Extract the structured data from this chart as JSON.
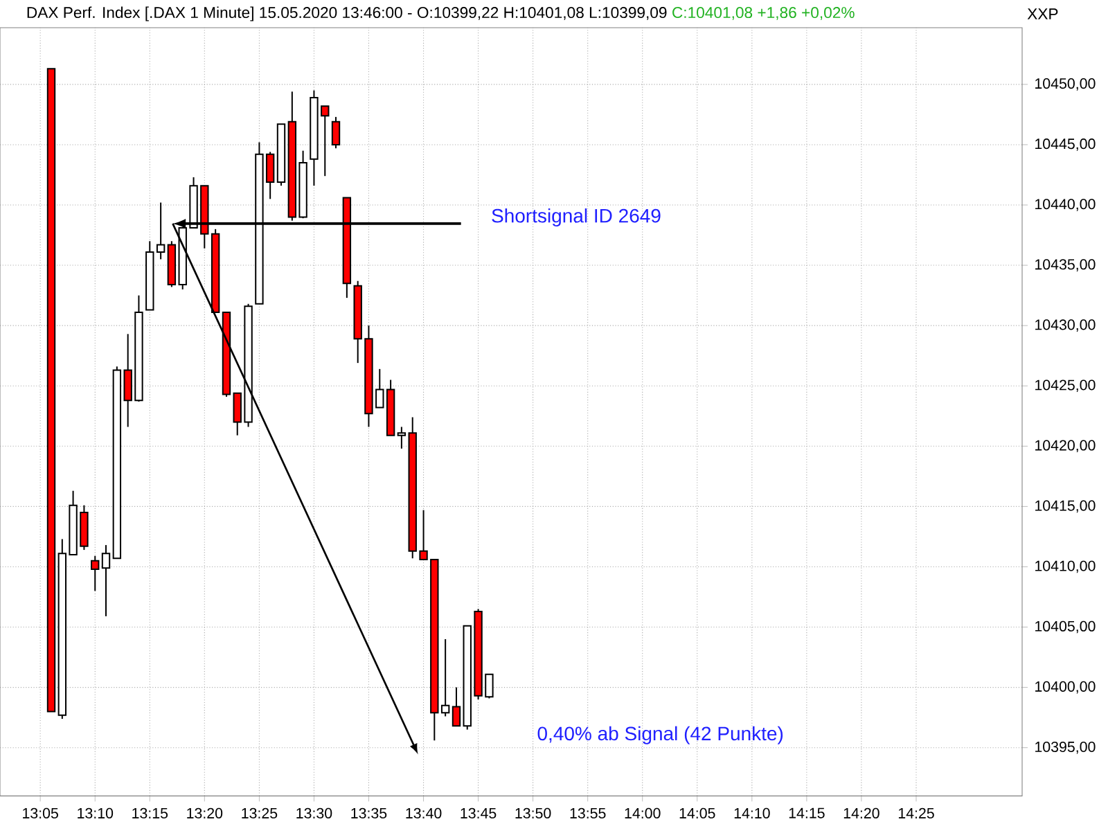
{
  "chart_data": {
    "type": "candlestick",
    "title": "DAX Perf. Index [.DAX  1 Minute] 15.05.2020 13:46:00 - O:10399,22 H:10401,08 L:10399,09",
    "subtitle": "C:10401,08 +1,86 +0,02%",
    "x": [
      13.1,
      13.1167,
      13.1333,
      13.15,
      13.1667,
      13.1833,
      13.2,
      13.2167,
      13.2333,
      13.25,
      13.2667,
      13.2833,
      13.3,
      13.3167,
      13.3333,
      13.35,
      13.3667,
      13.3833,
      13.4,
      13.4167,
      13.4333,
      13.45,
      13.4667,
      13.4833,
      13.5,
      13.5167,
      13.5333,
      13.55,
      13.5667,
      13.5833,
      13.6,
      13.6167,
      13.6333,
      13.65,
      13.6667,
      13.6833,
      13.7,
      13.7167,
      13.7333,
      13.75,
      13.7667
    ],
    "ohlc": [
      [
        10451.3,
        10451.3,
        10398.0,
        10398.0
      ],
      [
        10397.7,
        10412.3,
        10397.4,
        10411.1
      ],
      [
        10411.0,
        10416.3,
        10411.0,
        10415.1
      ],
      [
        10414.5,
        10415.1,
        10411.4,
        10411.7
      ],
      [
        10410.5,
        10410.9,
        10408.0,
        10409.8
      ],
      [
        10409.9,
        10411.8,
        10405.9,
        10411.1
      ],
      [
        10410.7,
        10426.6,
        10410.7,
        10426.3
      ],
      [
        10426.3,
        10429.3,
        10421.6,
        10423.8
      ],
      [
        10423.8,
        10432.5,
        10423.7,
        10431.1
      ],
      [
        10431.3,
        10437.0,
        10431.3,
        10436.1
      ],
      [
        10436.1,
        10440.2,
        10435.5,
        10436.7
      ],
      [
        10436.7,
        10437.0,
        10433.2,
        10433.4
      ],
      [
        10433.4,
        10438.1,
        10433.0,
        10438.1
      ],
      [
        10438.1,
        10442.3,
        10438.1,
        10441.6
      ],
      [
        10441.6,
        10441.6,
        10436.4,
        10437.6
      ],
      [
        10437.6,
        10438.0,
        10431.1,
        10431.1
      ],
      [
        10431.1,
        10431.1,
        10424.1,
        10424.3
      ],
      [
        10424.4,
        10424.4,
        10420.9,
        10422.0
      ],
      [
        10422.0,
        10431.8,
        10421.6,
        10431.6
      ],
      [
        10431.8,
        10445.2,
        10431.8,
        10444.2
      ],
      [
        10444.2,
        10444.4,
        10440.5,
        10441.9
      ],
      [
        10441.9,
        10446.7,
        10441.6,
        10446.7
      ],
      [
        10446.9,
        10449.4,
        10438.7,
        10439.0
      ],
      [
        10439.0,
        10444.5,
        10438.9,
        10443.5
      ],
      [
        10443.8,
        10449.5,
        10441.6,
        10448.9
      ],
      [
        10448.2,
        10448.2,
        10442.4,
        10447.4
      ],
      [
        10446.9,
        10447.3,
        10444.7,
        10445.0
      ],
      [
        10440.6,
        10440.6,
        10432.3,
        10433.5
      ],
      [
        10433.3,
        10433.7,
        10426.9,
        10428.9
      ],
      [
        10428.9,
        10430.0,
        10421.6,
        10422.7
      ],
      [
        10423.2,
        10426.4,
        10423.2,
        10424.7
      ],
      [
        10424.7,
        10425.5,
        10420.9,
        10420.9
      ],
      [
        10420.9,
        10421.6,
        10419.8,
        10421.1
      ],
      [
        10421.1,
        10422.4,
        10410.7,
        10411.3
      ],
      [
        10411.3,
        10414.7,
        10410.6,
        10410.6
      ],
      [
        10410.6,
        10410.6,
        10395.6,
        10397.9
      ],
      [
        10397.9,
        10404.0,
        10397.6,
        10398.5
      ],
      [
        10398.4,
        10400.0,
        10396.8,
        10396.8
      ],
      [
        10396.8,
        10405.1,
        10396.5,
        10405.1
      ],
      [
        10406.3,
        10406.5,
        10399.0,
        10399.3
      ],
      [
        10399.22,
        10401.08,
        10399.09,
        10401.08
      ]
    ],
    "colors": [
      "#ff0000",
      "#ffffff",
      "#ffffff",
      "#ff0000",
      "#ff0000",
      "#ffffff",
      "#ffffff",
      "#ff0000",
      "#ffffff",
      "#ffffff",
      "#ffffff",
      "#ff0000",
      "#ffffff",
      "#ffffff",
      "#ff0000",
      "#ff0000",
      "#ff0000",
      "#ff0000",
      "#ffffff",
      "#ffffff",
      "#ff0000",
      "#ffffff",
      "#ff0000",
      "#ffffff",
      "#ffffff",
      "#ff0000",
      "#ff0000",
      "#ff0000",
      "#ff0000",
      "#ff0000",
      "#ffffff",
      "#ff0000",
      "#ffffff",
      "#ff0000",
      "#ff0000",
      "#ff0000",
      "#ffffff",
      "#ff0000",
      "#ffffff",
      "#ff0000",
      "#ffffff"
    ],
    "xlim": [
      13.022,
      14.578
    ],
    "ylim": [
      10391,
      10454.7
    ],
    "xticks": [
      {
        "value": 13.0833,
        "label": "13:05"
      },
      {
        "value": 13.1667,
        "label": "13:10"
      },
      {
        "value": 13.25,
        "label": "13:15"
      },
      {
        "value": 13.3333,
        "label": "13:20"
      },
      {
        "value": 13.4167,
        "label": "13:25"
      },
      {
        "value": 13.5,
        "label": "13:30"
      },
      {
        "value": 13.5833,
        "label": "13:35"
      },
      {
        "value": 13.6667,
        "label": "13:40"
      },
      {
        "value": 13.75,
        "label": "13:45"
      },
      {
        "value": 13.8333,
        "label": "13:50"
      },
      {
        "value": 13.9167,
        "label": "13:55"
      },
      {
        "value": 14,
        "label": "14:00"
      },
      {
        "value": 14.0833,
        "label": "14:05"
      },
      {
        "value": 14.1667,
        "label": "14:10"
      },
      {
        "value": 14.25,
        "label": "14:15"
      },
      {
        "value": 14.3333,
        "label": "14:20"
      },
      {
        "value": 14.4167,
        "label": "14:25"
      }
    ],
    "yticks": [
      {
        "value": 10395,
        "label": "10395,00"
      },
      {
        "value": 10400,
        "label": "10400,00"
      },
      {
        "value": 10405,
        "label": "10405,00"
      },
      {
        "value": 10410,
        "label": "10410,00"
      },
      {
        "value": 10415,
        "label": "10415,00"
      },
      {
        "value": 10420,
        "label": "10420,00"
      },
      {
        "value": 10425,
        "label": "10425,00"
      },
      {
        "value": 10430,
        "label": "10430,00"
      },
      {
        "value": 10435,
        "label": "10435,00"
      },
      {
        "value": 10440,
        "label": "10440,00"
      },
      {
        "value": 10445,
        "label": "10445,00"
      },
      {
        "value": 10450,
        "label": "10450,00"
      }
    ],
    "grid": true,
    "annotations": [
      "Shortsignal ID 2649",
      "0,40% ab Signal (42 Punkte)",
      "XXP"
    ]
  }
}
